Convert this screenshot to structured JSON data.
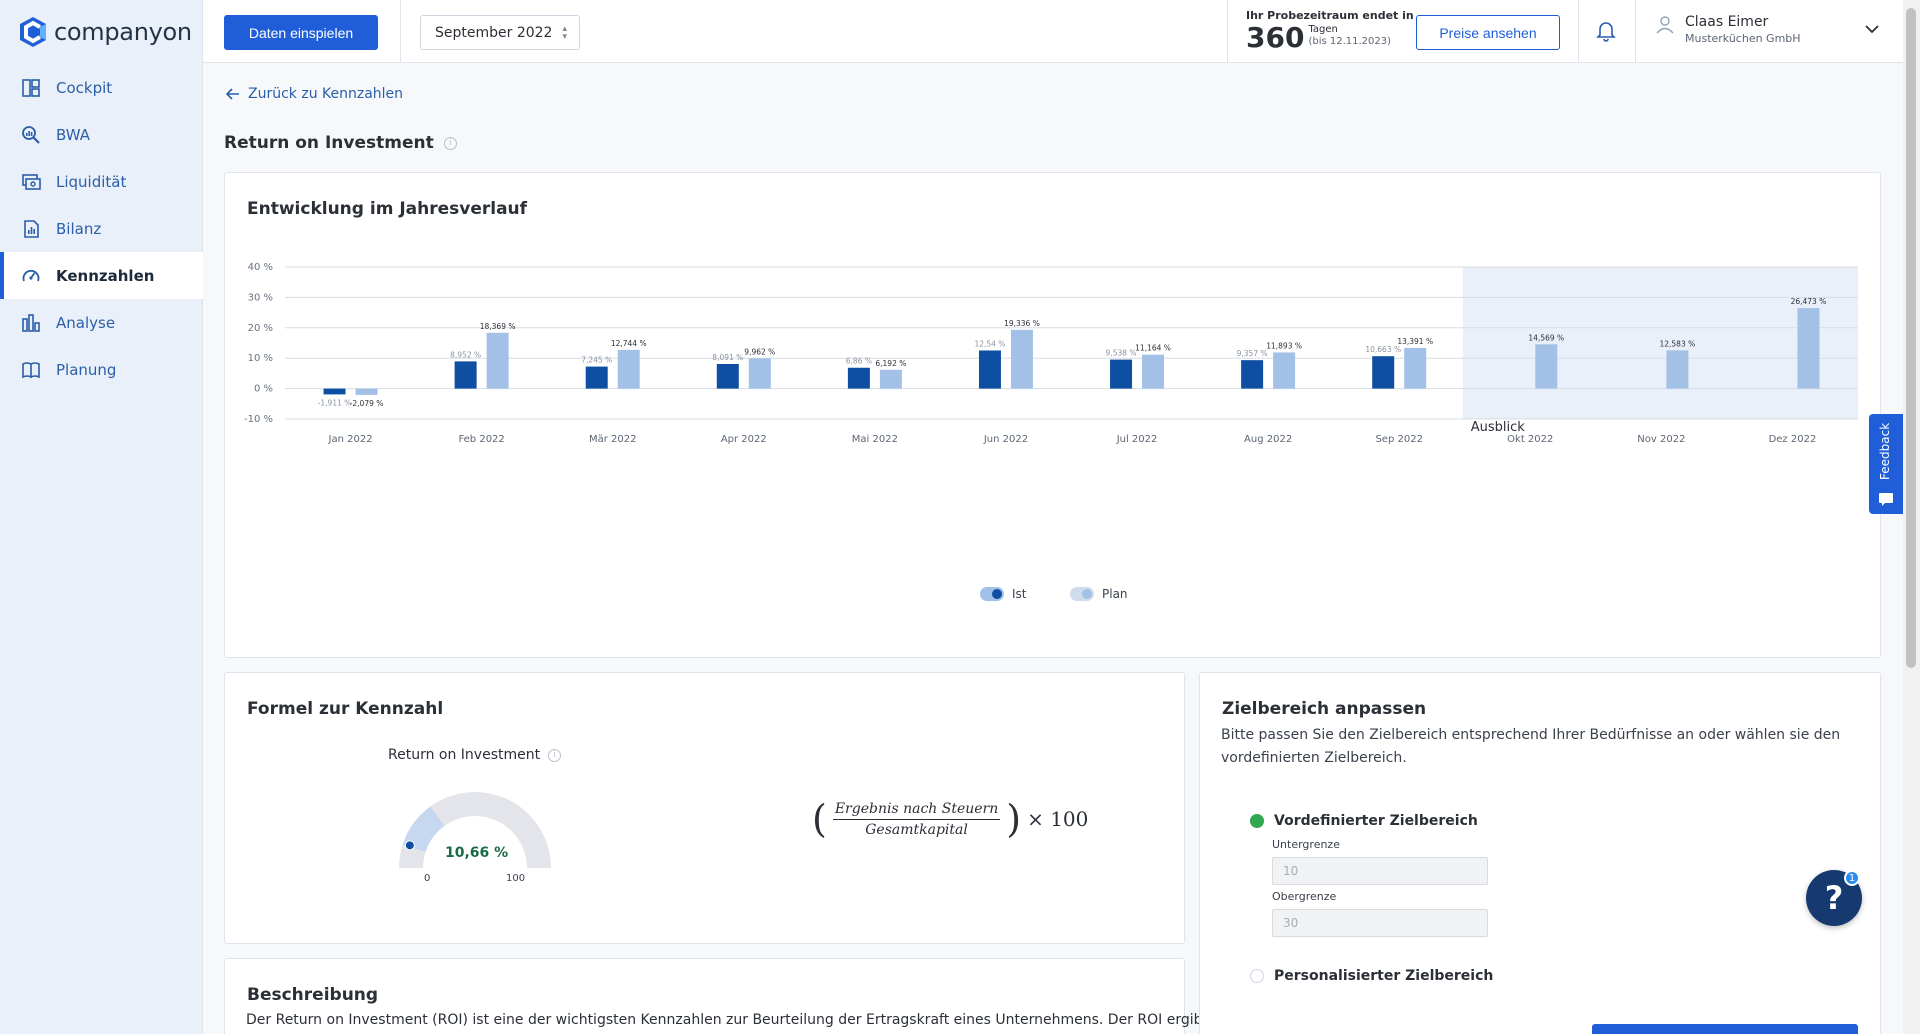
{
  "app": {
    "logo_text": "companyon"
  },
  "sidebar": {
    "items": [
      {
        "label": "Cockpit",
        "icon": "dashboard-icon"
      },
      {
        "label": "BWA",
        "icon": "search-chart-icon"
      },
      {
        "label": "Liquidität",
        "icon": "cash-icon"
      },
      {
        "label": "Bilanz",
        "icon": "document-icon"
      },
      {
        "label": "Kennzahlen",
        "icon": "gauge-icon",
        "active": true
      },
      {
        "label": "Analyse",
        "icon": "bar-chart-icon"
      },
      {
        "label": "Planung",
        "icon": "book-icon"
      }
    ]
  },
  "header": {
    "import_button": "Daten einspielen",
    "month_select": "September 2022",
    "trial": {
      "label": "Ihr Probezeitraum endet in",
      "days": "360",
      "unit": "Tagen",
      "until": "(bis 12.11.2023)"
    },
    "prices_button": "Preise ansehen",
    "user": {
      "name": "Claas Eimer",
      "company": "Musterküchen GmbH"
    }
  },
  "page": {
    "back_link": "Zurück zu Kennzahlen",
    "title": "Return on Investment"
  },
  "chart_card": {
    "title": "Entwicklung im Jahresverlauf"
  },
  "chart_data": {
    "type": "bar",
    "title": "Entwicklung im Jahresverlauf",
    "categories": [
      "Jan 2022",
      "Feb 2022",
      "Mär 2022",
      "Apr 2022",
      "Mai 2022",
      "Jun 2022",
      "Jul 2022",
      "Aug 2022",
      "Sep 2022",
      "Okt 2022",
      "Nov 2022",
      "Dez 2022"
    ],
    "series": [
      {
        "name": "Ist",
        "color": "#0f4fa3",
        "values": [
          -1.911,
          8.952,
          7.245,
          8.091,
          6.86,
          12.54,
          9.538,
          9.357,
          10.663,
          null,
          null,
          null
        ],
        "labels": [
          "-1,911 %",
          "8,952 %",
          "7,245 %",
          "8,091 %",
          "6,86 %",
          "12,54 %",
          "9,538 %",
          "9,357 %",
          "10,663 %",
          "",
          "",
          ""
        ]
      },
      {
        "name": "Plan",
        "color": "#a3c1e6",
        "values": [
          -2.079,
          18.369,
          12.744,
          9.962,
          6.192,
          19.336,
          11.164,
          11.893,
          13.391,
          14.569,
          12.583,
          26.473
        ],
        "labels": [
          "-2,079 %",
          "18,369 %",
          "12,744 %",
          "9,962 %",
          "6,192 %",
          "19,336 %",
          "11,164 %",
          "11,893 %",
          "13,391 %",
          "14,569 %",
          "12,583 %",
          "26,473 %"
        ]
      }
    ],
    "ylim": [
      -10,
      40
    ],
    "yticks": [
      40,
      30,
      20,
      10,
      0,
      -10
    ],
    "ytick_labels": [
      "40 %",
      "30 %",
      "20 %",
      "10 %",
      "0 %",
      "-10 %"
    ],
    "forecast": {
      "label": "Ausblick",
      "from_category": "Okt 2022"
    },
    "grid": true,
    "legend_position": "bottom-center"
  },
  "legend": {
    "ist": "Ist",
    "plan": "Plan"
  },
  "formula_card": {
    "title": "Formel zur Kennzahl",
    "gauge_label": "Return on Investment",
    "gauge_value_text": "10,66 %",
    "gauge_value": 10.66,
    "gauge_min": "0",
    "gauge_max": "100",
    "target_range": [
      10,
      30
    ],
    "numerator": "Ergebnis nach Steuern",
    "denominator": "Gesamtkapital",
    "multiplier": "× 100"
  },
  "description_card": {
    "title": "Beschreibung",
    "text": "Der Return on Investment (ROI) ist eine der wichtigsten Kennzahlen zur Beurteilung der Ertragskraft eines Unternehmens. Der ROI ergibt"
  },
  "target_card": {
    "title": "Zielbereich anpassen",
    "subtitle": "Bitte passen Sie den Zielbereich entsprechend Ihrer Bedürfnisse an oder wählen sie den vordefinierten Zielbereich.",
    "option_predefined": "Vordefinierter Zielbereich",
    "lower_label": "Untergrenze",
    "lower_value": "10",
    "upper_label": "Obergrenze",
    "upper_value": "30",
    "option_custom": "Personalisierter Zielbereich"
  },
  "feedback_tab": "Feedback",
  "help_button": "?",
  "help_badge": "1"
}
